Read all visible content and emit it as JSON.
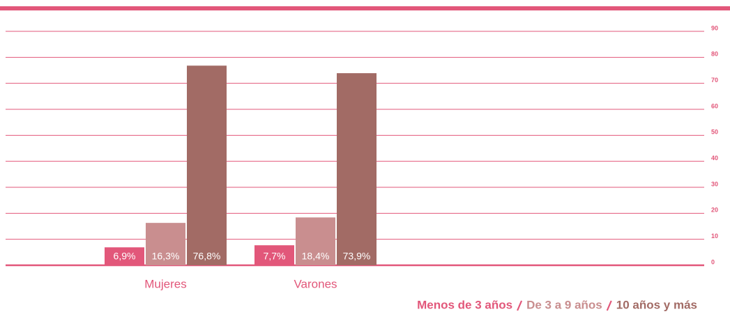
{
  "chart_data": {
    "type": "bar",
    "categories": [
      "Mujeres",
      "Varones"
    ],
    "series": [
      {
        "name": "Menos de 3 años",
        "color": "#e2577a",
        "values": [
          6.9,
          7.7
        ],
        "value_labels": [
          "6,9%",
          "7,7%"
        ]
      },
      {
        "name": "De 3 a 9 años",
        "color": "#c98e8f",
        "values": [
          16.3,
          18.4
        ],
        "value_labels": [
          "16,3%",
          "18,4%"
        ]
      },
      {
        "name": "10 años y más",
        "color": "#a26b65",
        "values": [
          76.8,
          73.9
        ],
        "value_labels": [
          "76,8%",
          "73,9%"
        ]
      }
    ],
    "ylim": [
      0,
      90
    ],
    "yticks": [
      0,
      10,
      20,
      30,
      40,
      50,
      60,
      70,
      80,
      90
    ],
    "grid": true
  }
}
